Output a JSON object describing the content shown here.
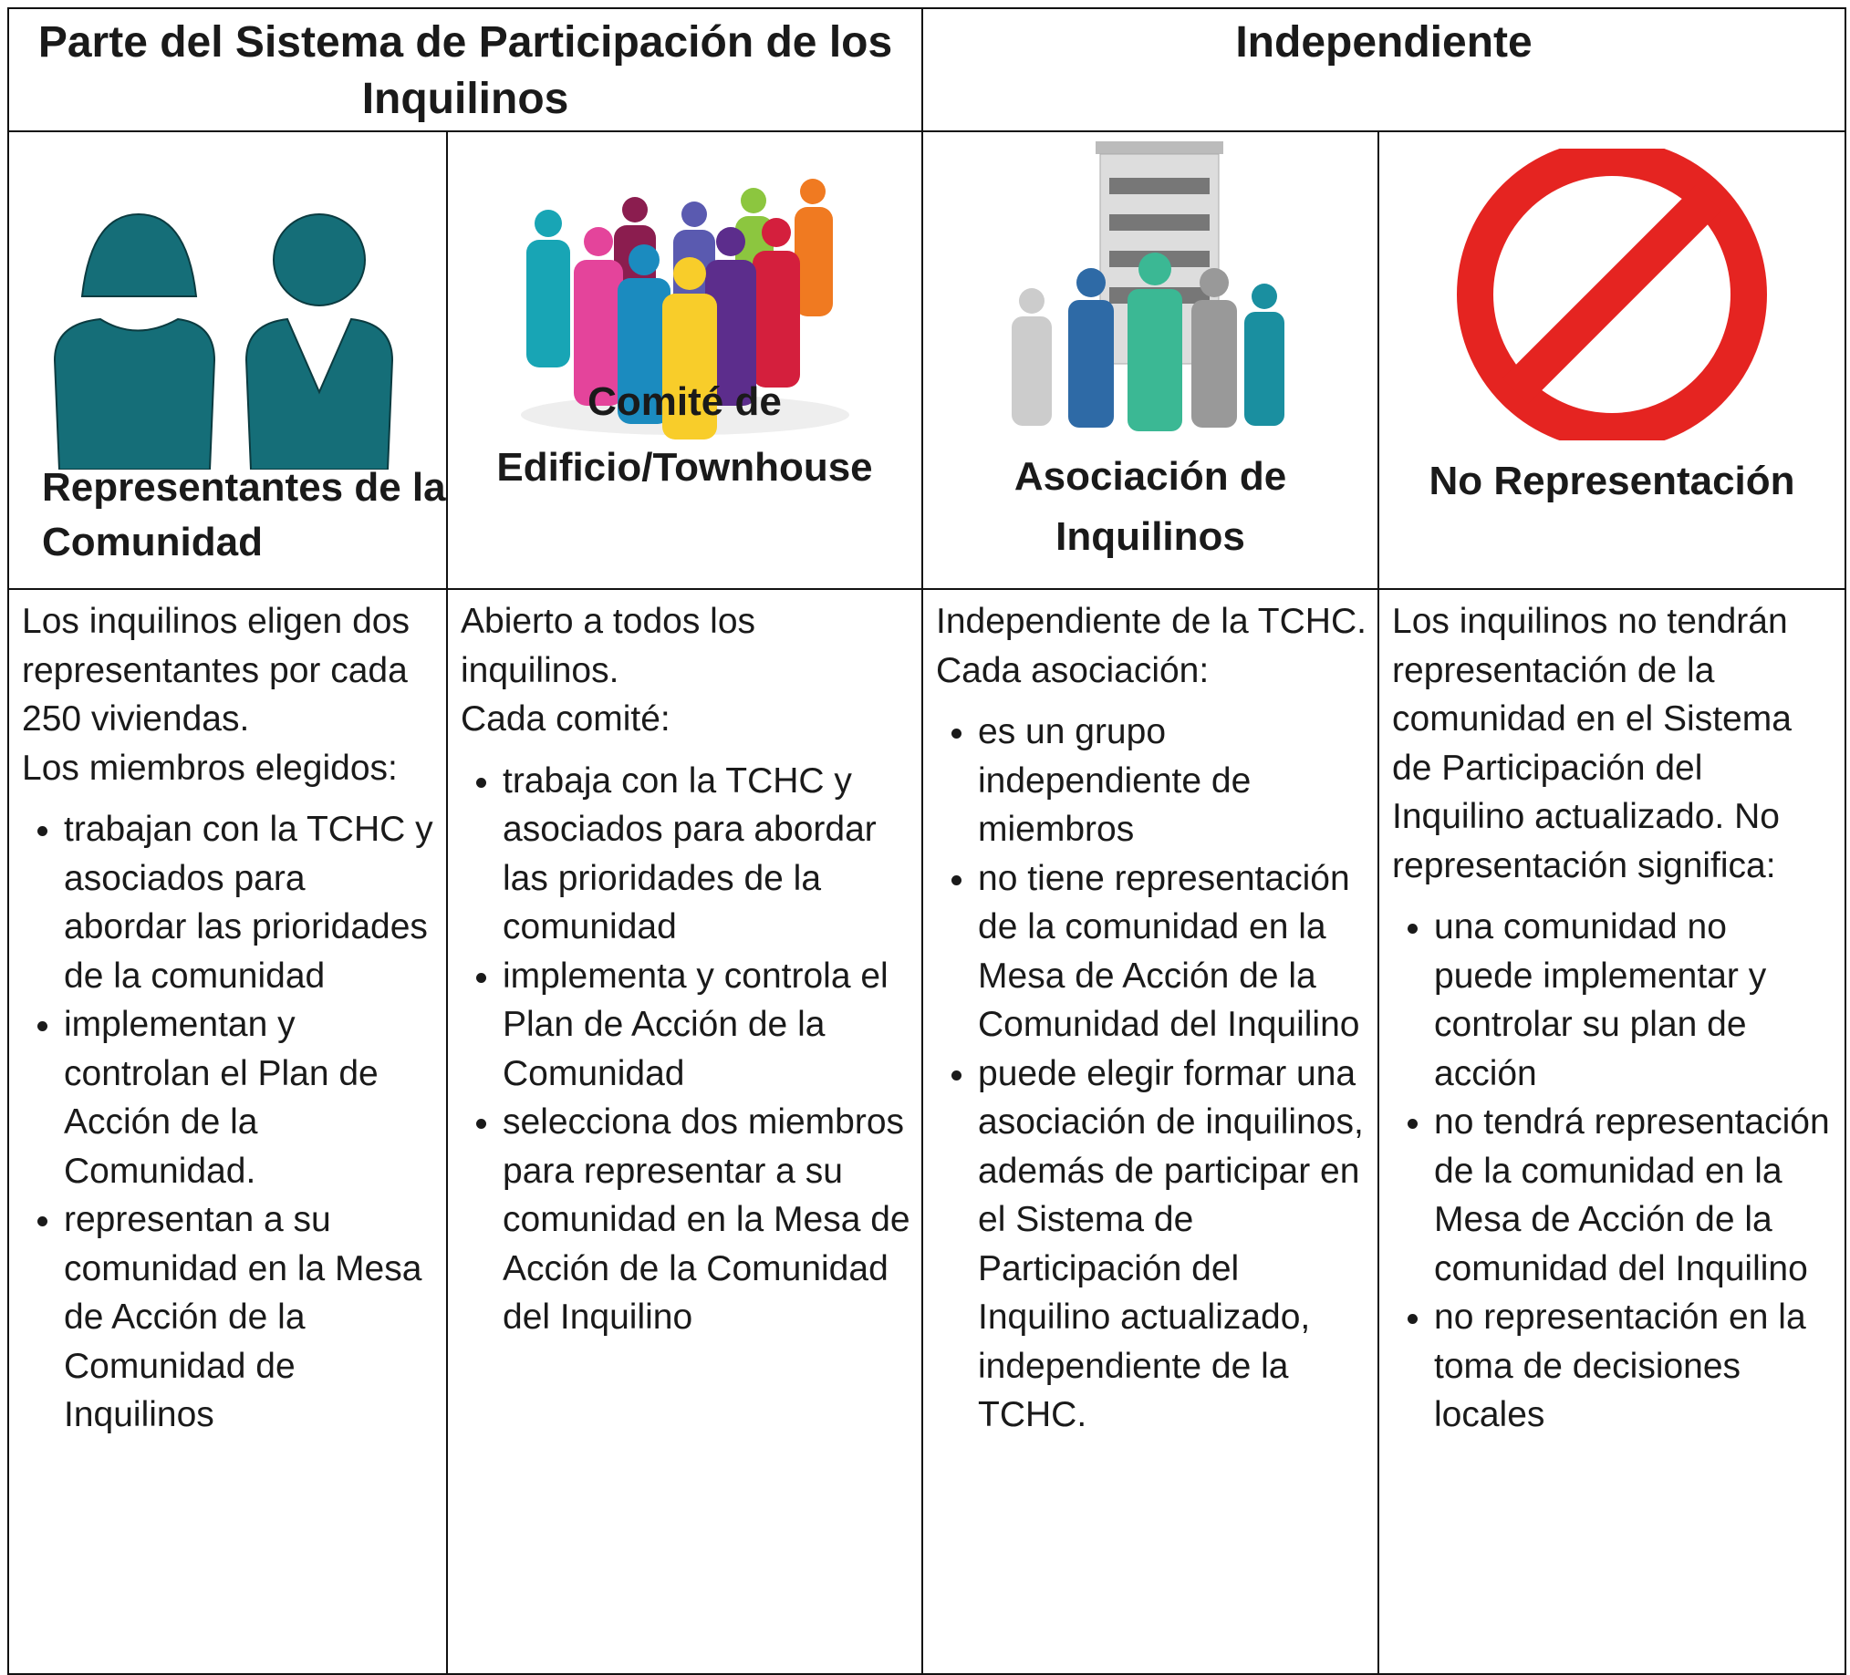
{
  "table": {
    "header": [
      "Parte del Sistema de Participación de los Inquilinos",
      "Independiente"
    ],
    "columns": [
      {
        "label": "Representantes de la Comunidad",
        "intro": [
          "Los inquilinos eligen dos representantes por cada 250 viviendas.",
          "Los miembros elegidos:"
        ],
        "bullets": [
          "trabajan con la TCHC y asociados para abordar las prioridades de la comunidad",
          "implementan y controlan el Plan de Acción de la Comunidad.",
          "representan a su comunidad en la Mesa de Acción de la Comunidad de Inquilinos"
        ]
      },
      {
        "label": "Comité de Edificio/Townhouse",
        "intro": [
          "Abierto a todos los inquilinos.",
          "Cada comité:"
        ],
        "bullets": [
          "trabaja con la TCHC y asociados para abordar las prioridades de la comunidad",
          "implementa y controla el Plan de Acción de la Comunidad",
          "selecciona dos miembros para representar a su comunidad en la Mesa de Acción de la Comunidad del Inquilino"
        ]
      },
      {
        "label": "Asociación de Inquilinos",
        "intro": [
          "Independiente de la TCHC.",
          "Cada asociación:"
        ],
        "bullets": [
          "es un grupo independiente de miembros",
          "no tiene representación de la comunidad en la Mesa de Acción de la Comunidad del Inquilino",
          "puede elegir formar una asociación de inquilinos, además de participar en el Sistema de Participación del Inquilino actualizado, independiente de la TCHC."
        ]
      },
      {
        "label": "No Representación",
        "intro": [
          "Los inquilinos no tendrán representación de la comunidad en el Sistema de Participación del Inquilino actualizado. No representación significa:"
        ],
        "bullets": [
          "una comunidad no puede implementar y controlar su plan de acción",
          "no tendrá representación de la comunidad en la Mesa de Acción de la comunidad del Inquilino",
          "no representación en la toma de decisiones locales"
        ]
      }
    ]
  }
}
